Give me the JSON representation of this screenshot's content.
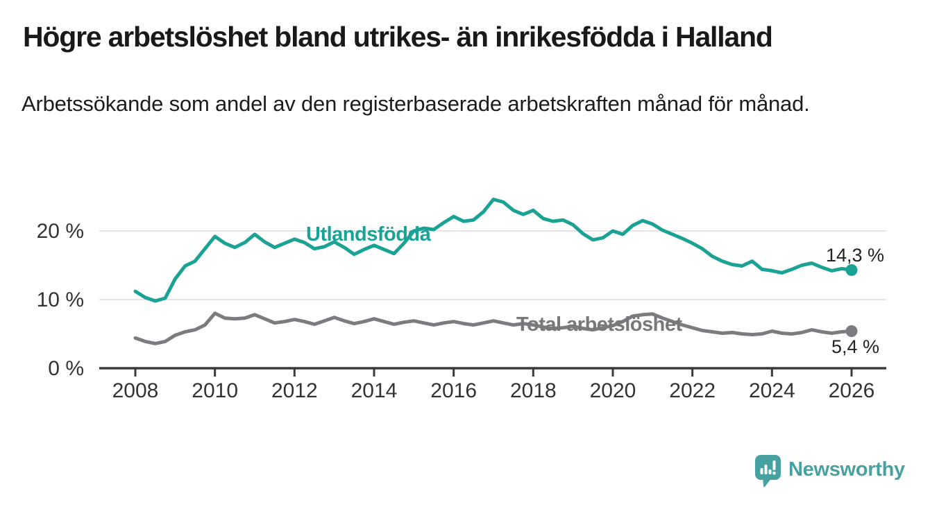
{
  "header": {
    "title": "Högre arbetslöshet bland utrikes- än inrikesfödda i Halland",
    "subtitle": "Arbetssökande som andel av den registerbaserade arbetskraften månad för månad."
  },
  "chart_data": {
    "type": "line",
    "title": "Högre arbetslöshet bland utrikes- än inrikesfödda i Halland",
    "subtitle": "Arbetssökande som andel av den registerbaserade arbetskraften månad för månad.",
    "unit": "%",
    "x_start": 2008.0,
    "x_step": 0.25,
    "x_end": 2026.0,
    "xlim": [
      2007.1,
      2026.9
    ],
    "ylim": [
      0,
      26
    ],
    "grid": "horizontal",
    "legend_position": "inline-labels",
    "x_ticks": [
      2008,
      2010,
      2012,
      2014,
      2016,
      2018,
      2020,
      2022,
      2024,
      2026
    ],
    "y_ticks": [
      {
        "value": 0,
        "label": "0 %"
      },
      {
        "value": 10,
        "label": "10 %"
      },
      {
        "value": 20,
        "label": "20 %"
      }
    ],
    "series": [
      {
        "name": "Utlandsfödda",
        "color": "#1aa295",
        "end_label": "14,3 %",
        "end_value": 14.3,
        "values": [
          11.2,
          10.3,
          9.8,
          10.2,
          13.0,
          14.9,
          15.6,
          17.4,
          19.2,
          18.2,
          17.6,
          18.3,
          19.5,
          18.4,
          17.6,
          18.2,
          18.8,
          18.3,
          17.4,
          17.7,
          18.4,
          17.6,
          16.6,
          17.3,
          17.9,
          17.3,
          16.7,
          18.2,
          20.0,
          20.4,
          20.2,
          21.2,
          22.1,
          21.4,
          21.6,
          22.8,
          24.6,
          24.2,
          23.0,
          22.4,
          23.0,
          21.8,
          21.4,
          21.6,
          20.9,
          19.6,
          18.7,
          19.0,
          20.0,
          19.5,
          20.8,
          21.5,
          21.0,
          20.1,
          19.5,
          18.9,
          18.2,
          17.4,
          16.3,
          15.6,
          15.1,
          14.9,
          15.6,
          14.4,
          14.2,
          13.9,
          14.4,
          15.0,
          15.3,
          14.7,
          14.2,
          14.5,
          14.3
        ]
      },
      {
        "name": "Total arbetslöshet",
        "color": "#7b7b80",
        "end_label": "5,4 %",
        "end_value": 5.4,
        "values": [
          4.4,
          3.9,
          3.6,
          3.9,
          4.8,
          5.3,
          5.6,
          6.3,
          8.0,
          7.3,
          7.2,
          7.3,
          7.8,
          7.2,
          6.6,
          6.8,
          7.1,
          6.8,
          6.4,
          6.9,
          7.4,
          6.9,
          6.5,
          6.8,
          7.2,
          6.8,
          6.4,
          6.7,
          6.9,
          6.6,
          6.3,
          6.6,
          6.8,
          6.5,
          6.3,
          6.6,
          6.9,
          6.6,
          6.3,
          6.5,
          6.3,
          6.0,
          5.8,
          5.9,
          6.1,
          5.8,
          5.6,
          5.9,
          6.2,
          6.8,
          7.6,
          7.8,
          7.9,
          7.3,
          6.8,
          6.3,
          5.9,
          5.5,
          5.3,
          5.1,
          5.2,
          5.0,
          4.9,
          5.0,
          5.4,
          5.1,
          5.0,
          5.2,
          5.6,
          5.3,
          5.1,
          5.3,
          5.4
        ]
      }
    ],
    "colors": {
      "grid": "#dbdbdb",
      "axis": "#3b3b3b",
      "tick_text": "#333333"
    }
  },
  "branding": {
    "name": "Newsworthy",
    "icon": "newsworthy-bar-chart-bubble-icon",
    "color": "#48a1a1"
  }
}
